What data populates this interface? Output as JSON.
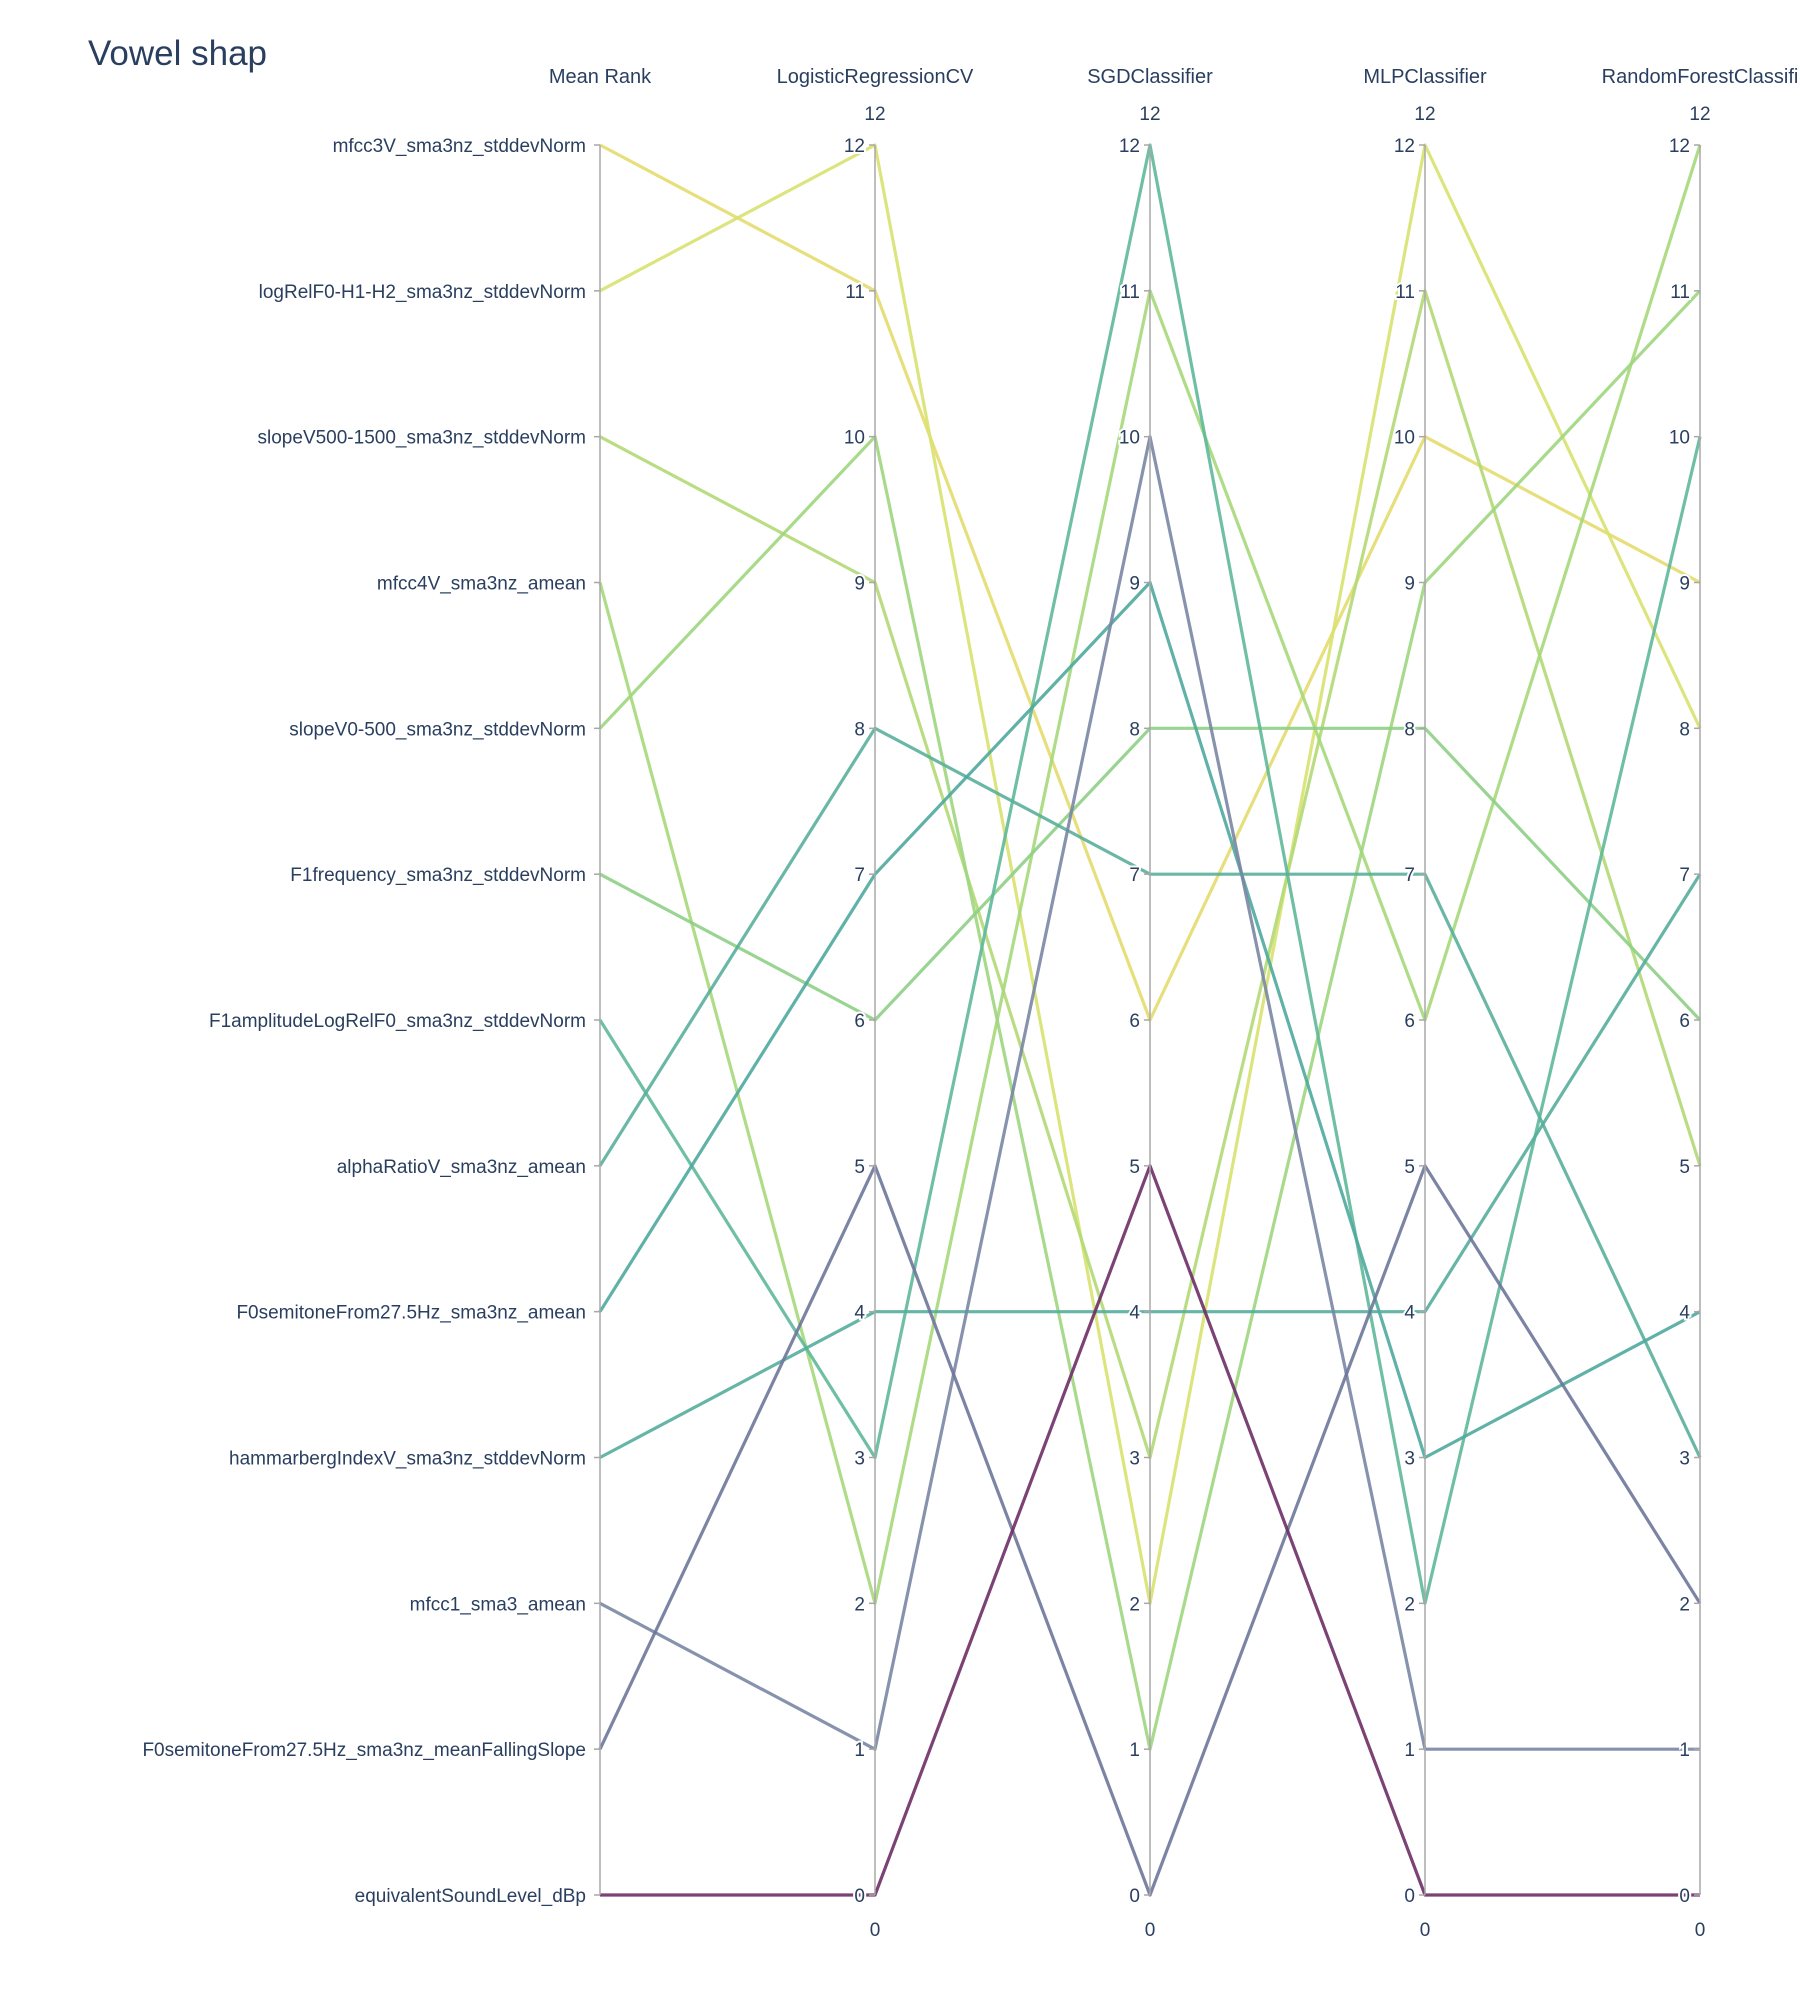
{
  "chart_data": {
    "type": "parallel-coordinates",
    "title": "Vowel shap",
    "axes": [
      "Mean Rank",
      "LogisticRegressionCV",
      "SGDClassifier",
      "MLPClassifier",
      "RandomForestClassifi"
    ],
    "range": [
      0,
      12
    ],
    "tick_values": [
      0,
      1,
      2,
      3,
      4,
      5,
      6,
      7,
      8,
      9,
      10,
      11,
      12
    ],
    "range_labels": {
      "top": "12",
      "bottom": "0"
    },
    "features": [
      "mfcc3V_sma3nz_stddevNorm",
      "logRelF0-H1-H2_sma3nz_stddevNorm",
      "slopeV500-1500_sma3nz_stddevNorm",
      "mfcc4V_sma3nz_amean",
      "slopeV0-500_sma3nz_stddevNorm",
      "F1frequency_sma3nz_stddevNorm",
      "F1amplitudeLogRelF0_sma3nz_stddevNorm",
      "alphaRatioV_sma3nz_amean",
      "F0semitoneFrom27.5Hz_sma3nz_amean",
      "hammarbergIndexV_sma3nz_stddevNorm",
      "mfcc1_sma3_amean",
      "F0semitoneFrom27.5Hz_sma3nz_meanFallingSlope",
      "equivalentSoundLevel_dBp"
    ],
    "lines": [
      {
        "values": [
          12,
          11,
          6,
          10,
          9
        ],
        "color": "#e4dc6e"
      },
      {
        "values": [
          11,
          12,
          2,
          12,
          8
        ],
        "color": "#d8e26f"
      },
      {
        "values": [
          10,
          9,
          3,
          11,
          5
        ],
        "color": "#b3d976"
      },
      {
        "values": [
          9,
          2,
          11,
          6,
          12
        ],
        "color": "#a6d87a"
      },
      {
        "values": [
          8,
          10,
          1,
          9,
          11
        ],
        "color": "#9fd67f"
      },
      {
        "values": [
          7,
          6,
          8,
          8,
          6
        ],
        "color": "#8ecf86"
      },
      {
        "values": [
          6,
          3,
          12,
          2,
          10
        ],
        "color": "#5fb89a"
      },
      {
        "values": [
          5,
          8,
          7,
          7,
          3
        ],
        "color": "#5aaf9c"
      },
      {
        "values": [
          4,
          7,
          9,
          3,
          4
        ],
        "color": "#4fa89e"
      },
      {
        "values": [
          3,
          4,
          4,
          4,
          7
        ],
        "color": "#55ad9d"
      },
      {
        "values": [
          2,
          1,
          10,
          1,
          1
        ],
        "color": "#7a86a4"
      },
      {
        "values": [
          1,
          5,
          0,
          5,
          2
        ],
        "color": "#6e779a"
      },
      {
        "values": [
          0,
          0,
          5,
          0,
          0
        ],
        "color": "#6d2f66"
      }
    ]
  }
}
